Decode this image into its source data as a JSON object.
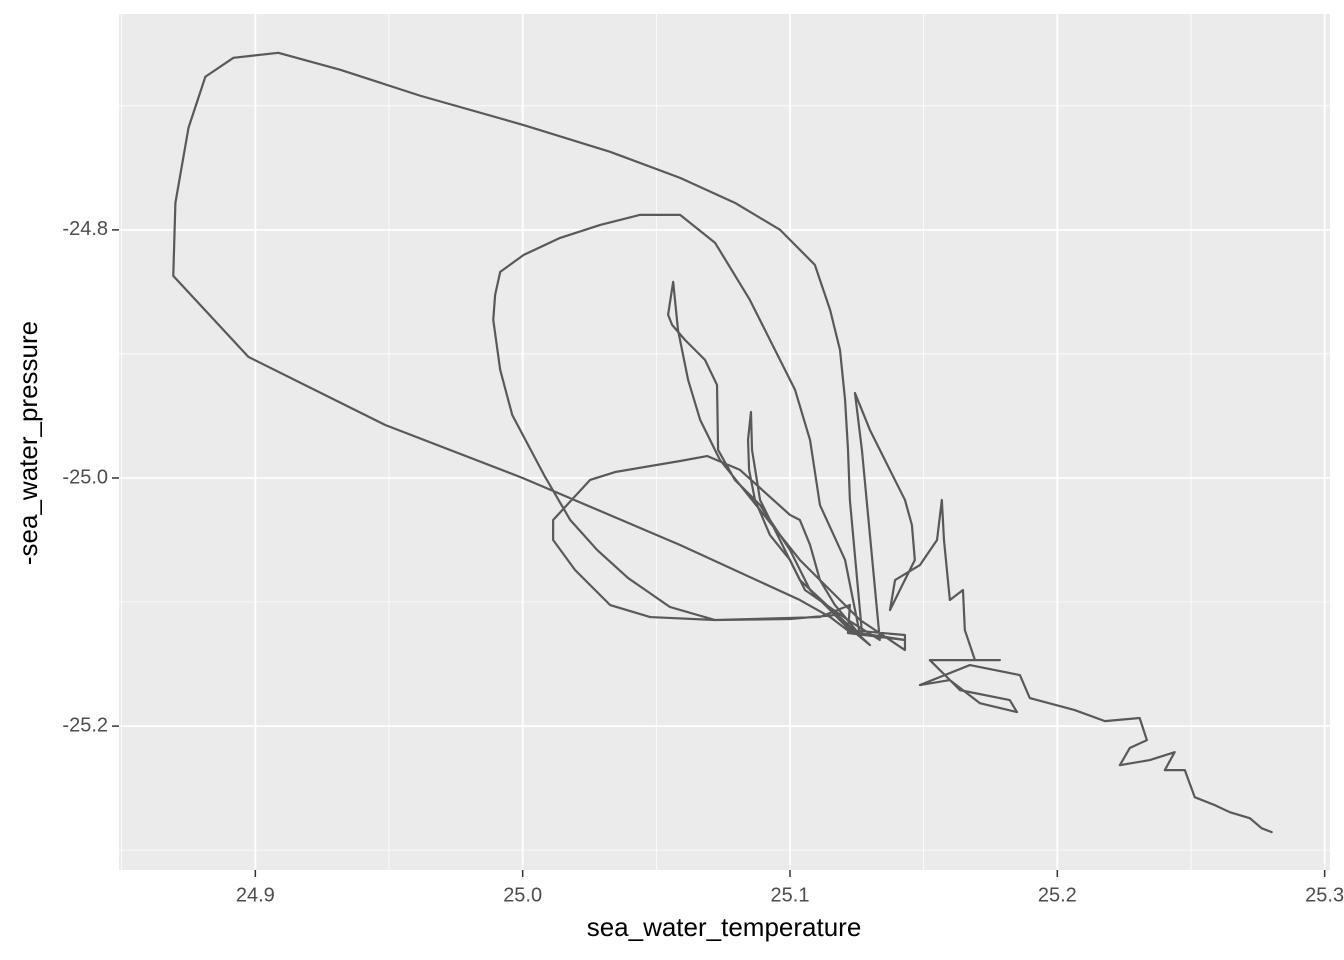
{
  "chart_data": {
    "type": "path",
    "x_label": "sea_water_temperature",
    "y_label": "-sea_water_pressure",
    "color": "#595959",
    "panel_color": "#EBEBEB",
    "grid": true,
    "xlim": [
      24.849,
      25.302
    ],
    "ylim": [
      -25.316,
      -24.626
    ],
    "xticks": [
      24.9,
      {
        "value": 25.0,
        "label": "25.0"
      },
      25.1,
      25.2,
      25.3
    ],
    "yticks": [
      -24.8,
      {
        "value": -25.0,
        "label": "-25.0"
      },
      -25.2
    ],
    "x_minor_grid": [
      24.85,
      24.95,
      25.05,
      25.15,
      25.25
    ],
    "y_minor_grid": [
      -24.7,
      -24.9,
      -25.1,
      -25.3
    ],
    "x": [
      25.1269,
      25.1224,
      25.1217,
      25.1206,
      25.1187,
      25.115,
      25.1093,
      25.0963,
      25.0794,
      25.0589,
      25.0327,
      25.0,
      24.9617,
      24.9318,
      24.9086,
      24.8918,
      24.8813,
      24.875,
      24.8701,
      24.8693,
      24.8974,
      24.9486,
      25.0,
      25.0589,
      25.1037,
      25.115,
      25.1224,
      25.1336,
      25.143,
      25.1217,
      25.1224,
      25.1112,
      25.072,
      25.0477,
      25.0327,
      25.0196,
      25.0114,
      25.0114,
      25.0252,
      25.0346,
      25.0589,
      25.069,
      25.0813,
      25.1,
      25.1037,
      25.1075,
      25.1112,
      25.1168,
      25.1262,
      25.1206,
      25.1112,
      25.1075,
      25.1019,
      25.085,
      25.072,
      25.0589,
      25.0439,
      25.029,
      25.014,
      25.0004,
      24.9916,
      24.9897,
      24.989,
      24.9916,
      24.9961,
      25.0084,
      25.0178,
      25.0279,
      25.0394,
      25.0551,
      25.072,
      25.1,
      25.1168,
      25.1224,
      25.143,
      25.143,
      25.1262,
      25.1037,
      25.0888,
      25.0738,
      25.0664,
      25.0619,
      25.0581,
      25.0563,
      25.0544,
      25.0559,
      25.0607,
      25.0682,
      25.0727,
      25.0731,
      25.0794,
      25.0888,
      25.1,
      25.1075,
      25.1187,
      25.1299,
      25.1037,
      25.0888,
      25.0858,
      25.0854,
      25.0843,
      25.0847,
      25.0869,
      25.0925,
      25.1,
      25.1056,
      25.1217,
      25.1336,
      25.1269,
      25.1243,
      25.1299,
      25.1355,
      25.143,
      25.1456,
      25.1467,
      25.1411,
      25.1374,
      25.1393,
      25.1486,
      25.155,
      25.1568,
      25.1576,
      25.1598,
      25.1647,
      25.1654,
      25.1692,
      25.1785,
      25.1523,
      25.1636,
      25.1822,
      25.1849,
      25.171,
      25.1598,
      25.1486,
      25.1673,
      25.186,
      25.1897,
      25.2065,
      25.2178,
      25.2308,
      25.2335,
      25.2271,
      25.2234,
      25.2346,
      25.2439,
      25.2402,
      25.2477,
      25.2514,
      25.2589,
      25.2645,
      25.272,
      25.2764,
      25.2802
    ],
    "values": [
      -25.1242,
      -25.0177,
      -24.9774,
      -24.9371,
      -24.8968,
      -24.8645,
      -24.8282,
      -24.8,
      -24.7782,
      -24.7581,
      -24.7371,
      -24.7153,
      -24.6919,
      -24.671,
      -24.6573,
      -24.6613,
      -24.6766,
      -24.7177,
      -24.7782,
      -24.8371,
      -24.9024,
      -24.9573,
      -25.0,
      -25.054,
      -25.0984,
      -25.1121,
      -25.1242,
      -25.1274,
      -25.1306,
      -25.125,
      -25.1024,
      -25.1121,
      -25.1145,
      -25.1121,
      -25.1024,
      -25.0742,
      -25.05,
      -25.0339,
      -25.0016,
      -24.9952,
      -24.9863,
      -24.9823,
      -24.9935,
      -25.0298,
      -25.0339,
      -25.054,
      -25.0823,
      -25.1024,
      -25.1266,
      -25.0661,
      -25.0218,
      -24.9694,
      -24.929,
      -24.8565,
      -24.8105,
      -24.7879,
      -24.7879,
      -24.796,
      -24.8065,
      -24.8202,
      -24.8339,
      -24.8524,
      -24.8726,
      -24.9129,
      -24.9492,
      -24.9992,
      -25.0339,
      -25.0581,
      -25.0806,
      -25.104,
      -25.1145,
      -25.1137,
      -25.1105,
      -25.1226,
      -25.1266,
      -25.1387,
      -25.1145,
      -25.0661,
      -25.0258,
      -24.9855,
      -24.9532,
      -24.921,
      -24.8806,
      -24.8419,
      -24.8685,
      -24.8766,
      -24.8887,
      -24.9048,
      -24.925,
      -24.9774,
      -25.0016,
      -25.0218,
      -25.0581,
      -25.0903,
      -25.1145,
      -25.1347,
      -25.0823,
      -25.0177,
      -24.9774,
      -24.9468,
      -24.9694,
      -24.9935,
      -25.0177,
      -25.046,
      -25.0661,
      -25.0903,
      -25.1145,
      -25.1306,
      -24.9774,
      -24.9315,
      -24.9613,
      -24.9855,
      -25.0177,
      -25.0379,
      -25.0661,
      -25.0903,
      -25.1065,
      -25.0823,
      -25.0702,
      -25.05,
      -25.0177,
      -25.05,
      -25.0984,
      -25.0903,
      -25.1226,
      -25.1468,
      -25.1468,
      -25.1468,
      -25.171,
      -25.179,
      -25.1887,
      -25.1815,
      -25.1629,
      -25.1669,
      -25.1508,
      -25.1589,
      -25.1774,
      -25.1871,
      -25.196,
      -25.1935,
      -25.2113,
      -25.2177,
      -25.2315,
      -25.2274,
      -25.221,
      -25.2355,
      -25.2355,
      -25.2573,
      -25.2637,
      -25.2694,
      -25.2742,
      -25.2823,
      -25.2855
    ]
  }
}
